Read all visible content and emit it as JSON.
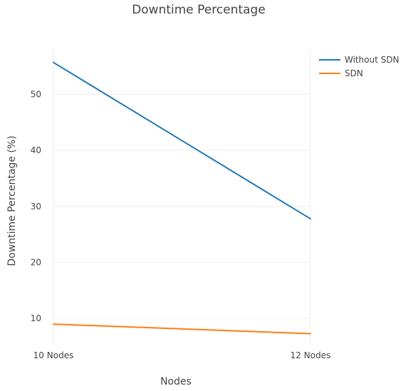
{
  "chart_data": {
    "type": "line",
    "title": "Downtime Percentage",
    "xlabel": "Nodes",
    "ylabel": "Downtime Percentage (%)",
    "categories": [
      "10 Nodes",
      "12 Nodes"
    ],
    "y_ticks": [
      10,
      20,
      30,
      40,
      50
    ],
    "ylim": [
      5.2,
      58.2
    ],
    "grid": true,
    "legend_position": "top-right",
    "series": [
      {
        "name": "Without SDN",
        "values": [
          55.7,
          27.8
        ],
        "color": "#1f77b4"
      },
      {
        "name": "SDN",
        "values": [
          9.0,
          7.3
        ],
        "color": "#ff7f0e"
      }
    ]
  }
}
